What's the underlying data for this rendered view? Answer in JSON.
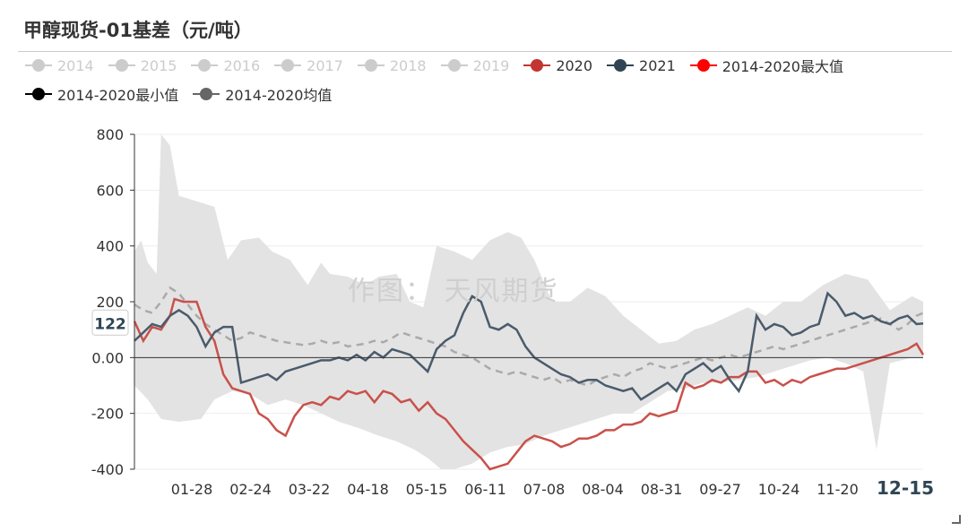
{
  "title": "甲醇现货-01基差（元/吨）",
  "watermark": "作图： 天风期货",
  "legend": [
    {
      "label": "2014",
      "color": "#cccccc",
      "active": false
    },
    {
      "label": "2015",
      "color": "#cccccc",
      "active": false
    },
    {
      "label": "2016",
      "color": "#cccccc",
      "active": false
    },
    {
      "label": "2017",
      "color": "#cccccc",
      "active": false
    },
    {
      "label": "2018",
      "color": "#cccccc",
      "active": false
    },
    {
      "label": "2019",
      "color": "#cccccc",
      "active": false
    },
    {
      "label": "2020",
      "color": "#c23531",
      "active": true
    },
    {
      "label": "2021",
      "color": "#2f4554",
      "active": true
    },
    {
      "label": "2014-2020最大值",
      "color": "#ff0000",
      "active": true
    },
    {
      "label": "2014-2020最小值",
      "color": "#000000",
      "active": true
    },
    {
      "label": "2014-2020均值",
      "color": "#666666",
      "active": true
    }
  ],
  "chart_data": {
    "type": "line",
    "y_ticks": [
      "800",
      "600",
      "400",
      "200",
      "0.00",
      "-200",
      "-400"
    ],
    "ylim": [
      -400,
      800
    ],
    "x_ticks": [
      "01-28",
      "02-24",
      "03-22",
      "04-18",
      "05-15",
      "06-11",
      "07-08",
      "08-04",
      "08-31",
      "09-27",
      "10-24",
      "11-20"
    ],
    "x_current": "12-15",
    "y_current": "122",
    "grid": true,
    "colors": {
      "range_band": "#e3e3e3",
      "s2020": "#c9514b",
      "s2021": "#4a5b6b",
      "mean": "#aaaaaa",
      "axis": "#333333",
      "grid": "#eeeeee"
    },
    "band_upper": [
      [
        0,
        380
      ],
      [
        3,
        420
      ],
      [
        6,
        340
      ],
      [
        10,
        300
      ],
      [
        12,
        800
      ],
      [
        16,
        760
      ],
      [
        20,
        580
      ],
      [
        28,
        560
      ],
      [
        36,
        540
      ],
      [
        42,
        350
      ],
      [
        48,
        420
      ],
      [
        56,
        430
      ],
      [
        62,
        380
      ],
      [
        70,
        350
      ],
      [
        78,
        260
      ],
      [
        84,
        340
      ],
      [
        88,
        300
      ],
      [
        96,
        290
      ],
      [
        104,
        260
      ],
      [
        110,
        290
      ],
      [
        118,
        300
      ],
      [
        124,
        200
      ],
      [
        130,
        180
      ],
      [
        136,
        400
      ],
      [
        144,
        380
      ],
      [
        152,
        350
      ],
      [
        160,
        420
      ],
      [
        168,
        450
      ],
      [
        174,
        430
      ],
      [
        180,
        350
      ],
      [
        188,
        200
      ],
      [
        196,
        200
      ],
      [
        204,
        250
      ],
      [
        212,
        220
      ],
      [
        220,
        150
      ],
      [
        228,
        100
      ],
      [
        236,
        50
      ],
      [
        244,
        60
      ],
      [
        252,
        100
      ],
      [
        260,
        120
      ],
      [
        268,
        150
      ],
      [
        276,
        180
      ],
      [
        284,
        150
      ],
      [
        292,
        200
      ],
      [
        300,
        200
      ],
      [
        310,
        260
      ],
      [
        320,
        300
      ],
      [
        330,
        280
      ],
      [
        340,
        170
      ],
      [
        350,
        220
      ],
      [
        355,
        200
      ]
    ],
    "band_lower": [
      [
        0,
        -100
      ],
      [
        6,
        -150
      ],
      [
        12,
        -220
      ],
      [
        20,
        -230
      ],
      [
        30,
        -220
      ],
      [
        36,
        -150
      ],
      [
        44,
        -120
      ],
      [
        52,
        -130
      ],
      [
        60,
        -170
      ],
      [
        68,
        -150
      ],
      [
        76,
        -170
      ],
      [
        84,
        -200
      ],
      [
        92,
        -230
      ],
      [
        100,
        -250
      ],
      [
        110,
        -280
      ],
      [
        118,
        -300
      ],
      [
        126,
        -330
      ],
      [
        132,
        -360
      ],
      [
        138,
        -400
      ],
      [
        144,
        -400
      ],
      [
        152,
        -380
      ],
      [
        160,
        -340
      ],
      [
        168,
        -320
      ],
      [
        176,
        -310
      ],
      [
        184,
        -280
      ],
      [
        192,
        -260
      ],
      [
        200,
        -240
      ],
      [
        208,
        -220
      ],
      [
        216,
        -200
      ],
      [
        224,
        -200
      ],
      [
        232,
        -160
      ],
      [
        240,
        -120
      ],
      [
        248,
        -110
      ],
      [
        256,
        -90
      ],
      [
        264,
        -90
      ],
      [
        272,
        -80
      ],
      [
        280,
        -70
      ],
      [
        288,
        -50
      ],
      [
        296,
        -30
      ],
      [
        304,
        -10
      ],
      [
        312,
        0
      ],
      [
        320,
        -20
      ],
      [
        328,
        -50
      ],
      [
        334,
        -330
      ],
      [
        340,
        -20
      ],
      [
        350,
        0
      ],
      [
        355,
        0
      ]
    ],
    "s2020": [
      [
        0,
        130
      ],
      [
        4,
        60
      ],
      [
        8,
        110
      ],
      [
        12,
        100
      ],
      [
        16,
        150
      ],
      [
        18,
        210
      ],
      [
        22,
        200
      ],
      [
        28,
        200
      ],
      [
        32,
        110
      ],
      [
        36,
        60
      ],
      [
        40,
        -60
      ],
      [
        44,
        -110
      ],
      [
        48,
        -120
      ],
      [
        52,
        -130
      ],
      [
        56,
        -200
      ],
      [
        60,
        -220
      ],
      [
        64,
        -260
      ],
      [
        68,
        -280
      ],
      [
        72,
        -210
      ],
      [
        76,
        -170
      ],
      [
        80,
        -160
      ],
      [
        84,
        -170
      ],
      [
        88,
        -140
      ],
      [
        92,
        -150
      ],
      [
        96,
        -120
      ],
      [
        100,
        -130
      ],
      [
        104,
        -120
      ],
      [
        108,
        -160
      ],
      [
        112,
        -120
      ],
      [
        116,
        -130
      ],
      [
        120,
        -160
      ],
      [
        124,
        -150
      ],
      [
        128,
        -190
      ],
      [
        132,
        -160
      ],
      [
        136,
        -200
      ],
      [
        140,
        -220
      ],
      [
        144,
        -260
      ],
      [
        148,
        -300
      ],
      [
        152,
        -330
      ],
      [
        156,
        -360
      ],
      [
        160,
        -400
      ],
      [
        164,
        -390
      ],
      [
        168,
        -380
      ],
      [
        172,
        -340
      ],
      [
        176,
        -300
      ],
      [
        180,
        -280
      ],
      [
        184,
        -290
      ],
      [
        188,
        -300
      ],
      [
        192,
        -320
      ],
      [
        196,
        -310
      ],
      [
        200,
        -290
      ],
      [
        204,
        -290
      ],
      [
        208,
        -280
      ],
      [
        212,
        -260
      ],
      [
        216,
        -260
      ],
      [
        220,
        -240
      ],
      [
        224,
        -240
      ],
      [
        228,
        -230
      ],
      [
        232,
        -200
      ],
      [
        236,
        -210
      ],
      [
        240,
        -200
      ],
      [
        244,
        -190
      ],
      [
        248,
        -90
      ],
      [
        252,
        -110
      ],
      [
        256,
        -100
      ],
      [
        260,
        -80
      ],
      [
        264,
        -90
      ],
      [
        268,
        -70
      ],
      [
        272,
        -70
      ],
      [
        276,
        -50
      ],
      [
        280,
        -50
      ],
      [
        284,
        -90
      ],
      [
        288,
        -80
      ],
      [
        292,
        -100
      ],
      [
        296,
        -80
      ],
      [
        300,
        -90
      ],
      [
        304,
        -70
      ],
      [
        308,
        -60
      ],
      [
        312,
        -50
      ],
      [
        316,
        -40
      ],
      [
        320,
        -40
      ],
      [
        324,
        -30
      ],
      [
        328,
        -20
      ],
      [
        332,
        -10
      ],
      [
        336,
        0
      ],
      [
        340,
        10
      ],
      [
        344,
        20
      ],
      [
        348,
        30
      ],
      [
        352,
        50
      ],
      [
        355,
        10
      ]
    ],
    "s2021": [
      [
        0,
        60
      ],
      [
        4,
        90
      ],
      [
        8,
        120
      ],
      [
        12,
        110
      ],
      [
        16,
        150
      ],
      [
        20,
        170
      ],
      [
        24,
        150
      ],
      [
        28,
        110
      ],
      [
        32,
        40
      ],
      [
        36,
        90
      ],
      [
        40,
        110
      ],
      [
        44,
        110
      ],
      [
        48,
        -90
      ],
      [
        52,
        -80
      ],
      [
        56,
        -70
      ],
      [
        60,
        -60
      ],
      [
        64,
        -80
      ],
      [
        68,
        -50
      ],
      [
        72,
        -40
      ],
      [
        76,
        -30
      ],
      [
        80,
        -20
      ],
      [
        84,
        -10
      ],
      [
        88,
        -10
      ],
      [
        92,
        0
      ],
      [
        96,
        -10
      ],
      [
        100,
        10
      ],
      [
        104,
        -10
      ],
      [
        108,
        20
      ],
      [
        112,
        0
      ],
      [
        116,
        30
      ],
      [
        120,
        20
      ],
      [
        124,
        10
      ],
      [
        128,
        -20
      ],
      [
        132,
        -50
      ],
      [
        136,
        30
      ],
      [
        140,
        60
      ],
      [
        144,
        80
      ],
      [
        148,
        160
      ],
      [
        152,
        220
      ],
      [
        156,
        200
      ],
      [
        160,
        110
      ],
      [
        164,
        100
      ],
      [
        168,
        120
      ],
      [
        172,
        100
      ],
      [
        176,
        40
      ],
      [
        180,
        0
      ],
      [
        184,
        -20
      ],
      [
        188,
        -40
      ],
      [
        192,
        -60
      ],
      [
        196,
        -70
      ],
      [
        200,
        -90
      ],
      [
        204,
        -80
      ],
      [
        208,
        -80
      ],
      [
        212,
        -100
      ],
      [
        216,
        -110
      ],
      [
        220,
        -120
      ],
      [
        224,
        -110
      ],
      [
        228,
        -150
      ],
      [
        232,
        -130
      ],
      [
        236,
        -110
      ],
      [
        240,
        -90
      ],
      [
        244,
        -120
      ],
      [
        248,
        -60
      ],
      [
        252,
        -40
      ],
      [
        256,
        -20
      ],
      [
        260,
        -50
      ],
      [
        264,
        -30
      ],
      [
        268,
        -80
      ],
      [
        272,
        -120
      ],
      [
        276,
        -50
      ],
      [
        280,
        150
      ],
      [
        284,
        100
      ],
      [
        288,
        120
      ],
      [
        292,
        110
      ],
      [
        296,
        80
      ],
      [
        300,
        90
      ],
      [
        304,
        110
      ],
      [
        308,
        120
      ],
      [
        312,
        230
      ],
      [
        316,
        200
      ],
      [
        320,
        150
      ],
      [
        324,
        160
      ],
      [
        328,
        140
      ],
      [
        332,
        150
      ],
      [
        336,
        130
      ],
      [
        340,
        120
      ],
      [
        344,
        140
      ],
      [
        348,
        150
      ],
      [
        352,
        120
      ],
      [
        355,
        122
      ]
    ],
    "mean": [
      [
        0,
        190
      ],
      [
        4,
        170
      ],
      [
        8,
        160
      ],
      [
        12,
        200
      ],
      [
        16,
        250
      ],
      [
        20,
        230
      ],
      [
        24,
        190
      ],
      [
        28,
        150
      ],
      [
        32,
        120
      ],
      [
        36,
        100
      ],
      [
        40,
        80
      ],
      [
        44,
        60
      ],
      [
        48,
        70
      ],
      [
        52,
        90
      ],
      [
        56,
        80
      ],
      [
        60,
        70
      ],
      [
        64,
        60
      ],
      [
        68,
        55
      ],
      [
        72,
        50
      ],
      [
        76,
        45
      ],
      [
        80,
        50
      ],
      [
        84,
        60
      ],
      [
        88,
        50
      ],
      [
        92,
        55
      ],
      [
        96,
        40
      ],
      [
        100,
        45
      ],
      [
        104,
        50
      ],
      [
        108,
        60
      ],
      [
        112,
        55
      ],
      [
        116,
        70
      ],
      [
        120,
        90
      ],
      [
        124,
        80
      ],
      [
        128,
        70
      ],
      [
        132,
        60
      ],
      [
        136,
        50
      ],
      [
        140,
        40
      ],
      [
        144,
        20
      ],
      [
        148,
        10
      ],
      [
        152,
        0
      ],
      [
        156,
        -20
      ],
      [
        160,
        -40
      ],
      [
        164,
        -50
      ],
      [
        168,
        -60
      ],
      [
        172,
        -50
      ],
      [
        176,
        -60
      ],
      [
        180,
        -70
      ],
      [
        184,
        -80
      ],
      [
        188,
        -70
      ],
      [
        192,
        -90
      ],
      [
        196,
        -80
      ],
      [
        200,
        -90
      ],
      [
        204,
        -100
      ],
      [
        208,
        -80
      ],
      [
        212,
        -70
      ],
      [
        216,
        -60
      ],
      [
        220,
        -70
      ],
      [
        224,
        -50
      ],
      [
        228,
        -40
      ],
      [
        232,
        -20
      ],
      [
        236,
        -30
      ],
      [
        240,
        -40
      ],
      [
        244,
        -30
      ],
      [
        248,
        -20
      ],
      [
        252,
        -10
      ],
      [
        256,
        0
      ],
      [
        260,
        -10
      ],
      [
        264,
        0
      ],
      [
        268,
        10
      ],
      [
        272,
        0
      ],
      [
        276,
        10
      ],
      [
        280,
        20
      ],
      [
        284,
        30
      ],
      [
        288,
        40
      ],
      [
        292,
        30
      ],
      [
        296,
        40
      ],
      [
        300,
        50
      ],
      [
        304,
        60
      ],
      [
        308,
        70
      ],
      [
        312,
        80
      ],
      [
        316,
        90
      ],
      [
        320,
        100
      ],
      [
        324,
        110
      ],
      [
        328,
        120
      ],
      [
        332,
        130
      ],
      [
        336,
        140
      ],
      [
        340,
        120
      ],
      [
        344,
        100
      ],
      [
        348,
        120
      ],
      [
        352,
        150
      ],
      [
        355,
        160
      ]
    ]
  }
}
